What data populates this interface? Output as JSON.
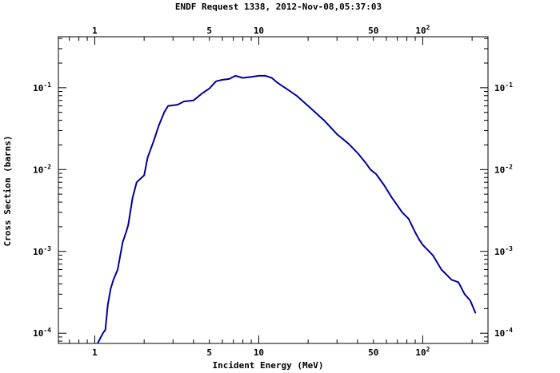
{
  "chart_data": {
    "type": "line",
    "title": "ENDF Request 1338, 2012-Nov-08,05:37:03",
    "xlabel": "Incident Energy (MeV)",
    "ylabel": "Cross Section (barns)",
    "x_scale": "log",
    "y_scale": "log",
    "xlim": [
      0.6,
      250
    ],
    "ylim": [
      7.5e-05,
      0.42
    ],
    "grid": false,
    "x_ticks": [
      {
        "value": 1,
        "label": "1",
        "exp": ""
      },
      {
        "value": 5,
        "label": "5",
        "exp": ""
      },
      {
        "value": 10,
        "label": "10",
        "exp": ""
      },
      {
        "value": 50,
        "label": "50",
        "exp": ""
      },
      {
        "value": 100,
        "label": "10",
        "exp": "2"
      }
    ],
    "y_ticks": [
      {
        "value": 0.0001,
        "label": "10",
        "exp": "-4"
      },
      {
        "value": 0.001,
        "label": "10",
        "exp": "-3"
      },
      {
        "value": 0.01,
        "label": "10",
        "exp": "-2"
      },
      {
        "value": 0.1,
        "label": "10",
        "exp": "-1"
      }
    ],
    "series": [
      {
        "color": "#000099",
        "x": [
          1.04,
          1.12,
          1.16,
          1.2,
          1.25,
          1.3,
          1.38,
          1.48,
          1.55,
          1.6,
          1.7,
          1.8,
          2.0,
          2.1,
          2.3,
          2.45,
          2.65,
          2.8,
          3.2,
          3.5,
          4.0,
          4.5,
          5.0,
          5.5,
          6.0,
          6.6,
          7.2,
          8.0,
          9.0,
          10.0,
          11.0,
          12.0,
          13.0,
          15.0,
          17.0,
          20.0,
          25.0,
          30.0,
          35.0,
          40.0,
          45.0,
          48.0,
          52.0,
          58.0,
          65.0,
          75.0,
          82.0,
          90.0,
          95.0,
          100.0,
          115.0,
          130.0,
          150.0,
          165.0,
          180.0,
          195.0,
          210.0
        ],
        "y": [
          7.5e-05,
          0.0001,
          0.00011,
          0.00022,
          0.00035,
          0.00045,
          0.0006,
          0.0013,
          0.0017,
          0.0021,
          0.0045,
          0.007,
          0.0085,
          0.014,
          0.023,
          0.034,
          0.05,
          0.06,
          0.062,
          0.068,
          0.07,
          0.085,
          0.098,
          0.12,
          0.125,
          0.128,
          0.14,
          0.132,
          0.136,
          0.14,
          0.14,
          0.132,
          0.115,
          0.095,
          0.08,
          0.06,
          0.04,
          0.027,
          0.021,
          0.016,
          0.012,
          0.01,
          0.0088,
          0.0065,
          0.0045,
          0.003,
          0.0025,
          0.0017,
          0.0014,
          0.0012,
          0.0009,
          0.0006,
          0.00045,
          0.00042,
          0.0003,
          0.00025,
          0.000175
        ]
      }
    ]
  }
}
